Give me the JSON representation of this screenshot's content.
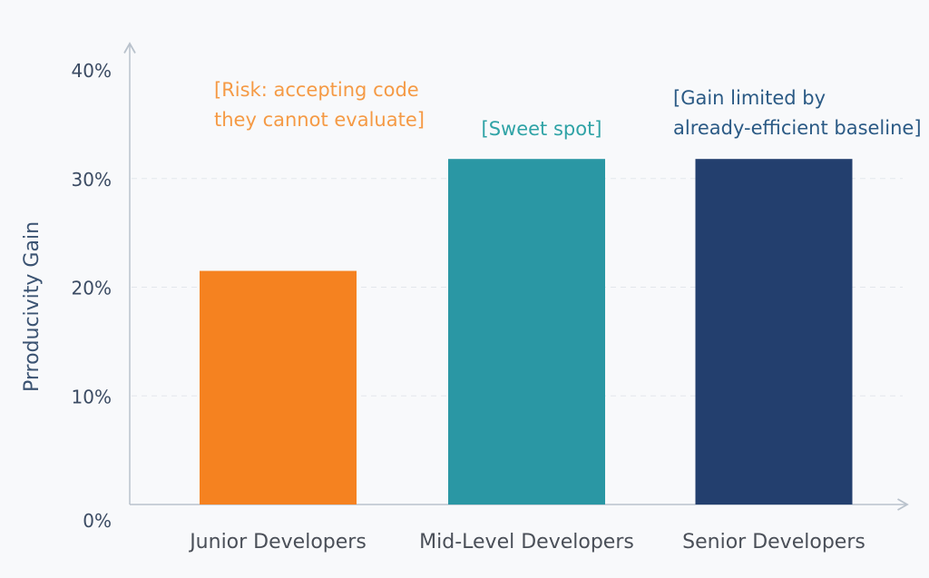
{
  "chart_data": {
    "type": "bar",
    "categories": [
      "Junior Developers",
      "Mid-Level Developers",
      "Senior Developers"
    ],
    "values": [
      21.5,
      31.8,
      31.8
    ],
    "ylabel": "Prroducivity Gain",
    "xlabel": "",
    "ylim": [
      0,
      40
    ],
    "yticks": [
      {
        "value": 0,
        "label": "0%"
      },
      {
        "value": 10,
        "label": "10%"
      },
      {
        "value": 20,
        "label": "20%"
      },
      {
        "value": 30,
        "label": "30%"
      },
      {
        "value": 40,
        "label": "40%"
      }
    ],
    "grid": true,
    "bar_colors": [
      "#f58220",
      "#2a97a4",
      "#233f6e"
    ],
    "annotations": [
      {
        "category": "Junior Developers",
        "lines": [
          "[Risk: accepting code",
          "they cannot evaluate]"
        ],
        "color": "#f59a45"
      },
      {
        "category": "Mid-Level Developers",
        "lines": [
          "[Sweet spot]"
        ],
        "color": "#2fa3a6"
      },
      {
        "category": "Senior Developers",
        "lines": [
          "[Gain limited by",
          "already-efficient baseline]"
        ],
        "color": "#2b5a85"
      }
    ],
    "colors": {
      "axis": "#b9c2cc",
      "grid": "#e3e7ec",
      "tick_text": "#3b4b63",
      "category_text": "#4a4f58",
      "ylabel_text": "#3b5372"
    }
  }
}
